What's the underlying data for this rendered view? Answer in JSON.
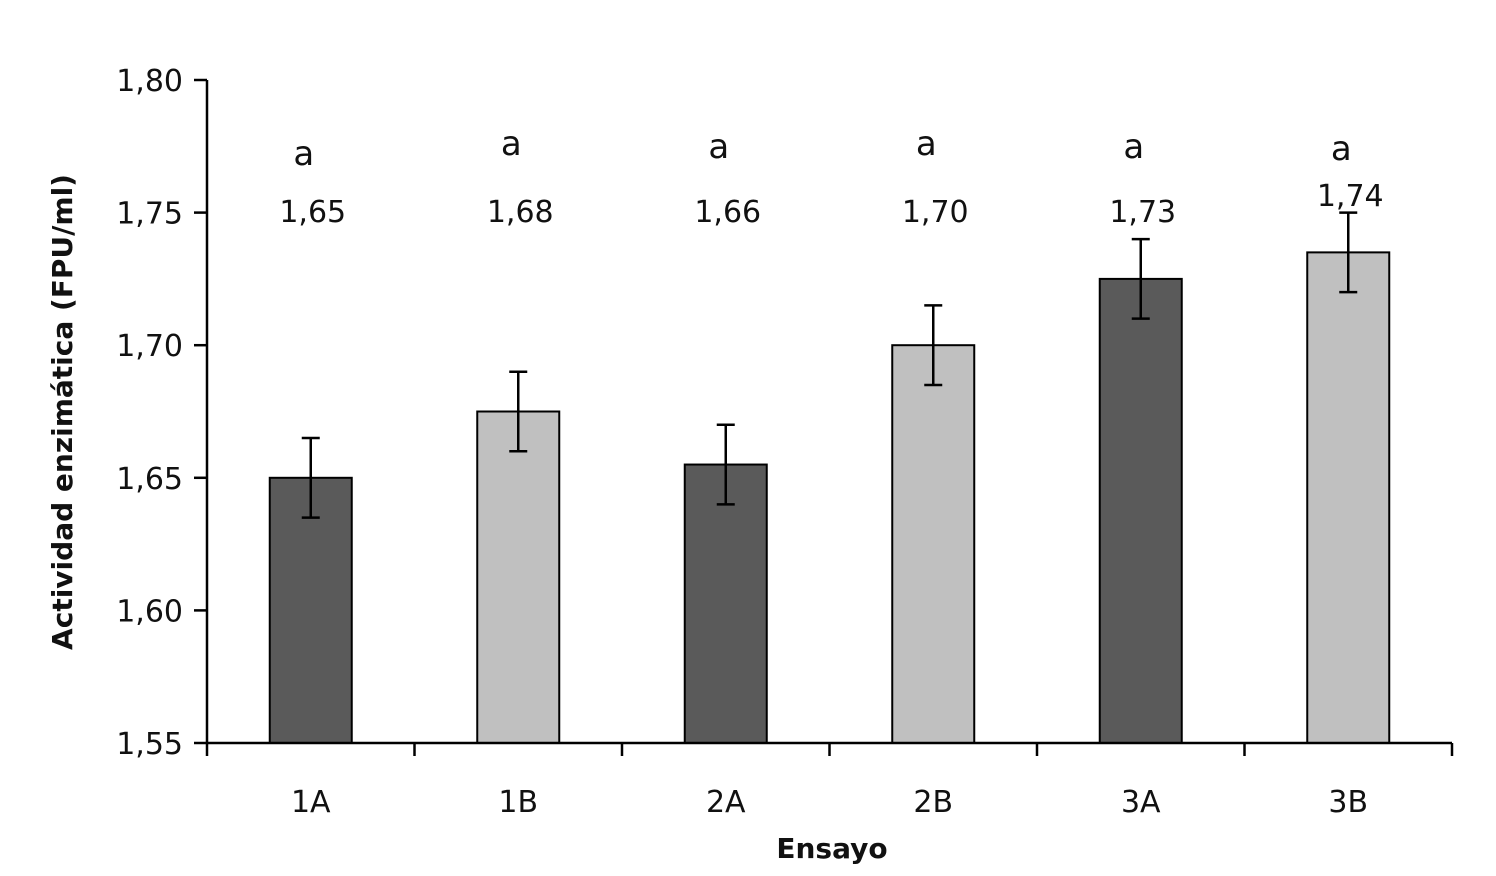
{
  "chart_data": {
    "type": "bar",
    "title": "",
    "xlabel": "Ensayo",
    "ylabel": "Actividad enzimática (FPU/ml)",
    "categories": [
      "1A",
      "1B",
      "2A",
      "2B",
      "3A",
      "3B"
    ],
    "values": [
      1.65,
      1.675,
      1.655,
      1.7,
      1.725,
      1.735
    ],
    "error": [
      0.015,
      0.015,
      0.015,
      0.015,
      0.015,
      0.015
    ],
    "value_labels": [
      "1,65",
      "1,68",
      "1,66",
      "1,70",
      "1,73",
      "1,74"
    ],
    "significance_labels": [
      "a",
      "a",
      "a",
      "a",
      "a",
      "a"
    ],
    "ylim": [
      1.55,
      1.8
    ],
    "yticks": [
      1.55,
      1.6,
      1.65,
      1.7,
      1.75,
      1.8
    ],
    "ytick_labels": [
      "1,55",
      "1,60",
      "1,65",
      "1,70",
      "1,75",
      "1,80"
    ],
    "grid": false,
    "colors": {
      "dark": "#5a5a5a",
      "light": "#c0c0c0",
      "axis": "#000000"
    },
    "bar_color_pattern": [
      "dark",
      "light",
      "dark",
      "light",
      "dark",
      "light"
    ]
  }
}
